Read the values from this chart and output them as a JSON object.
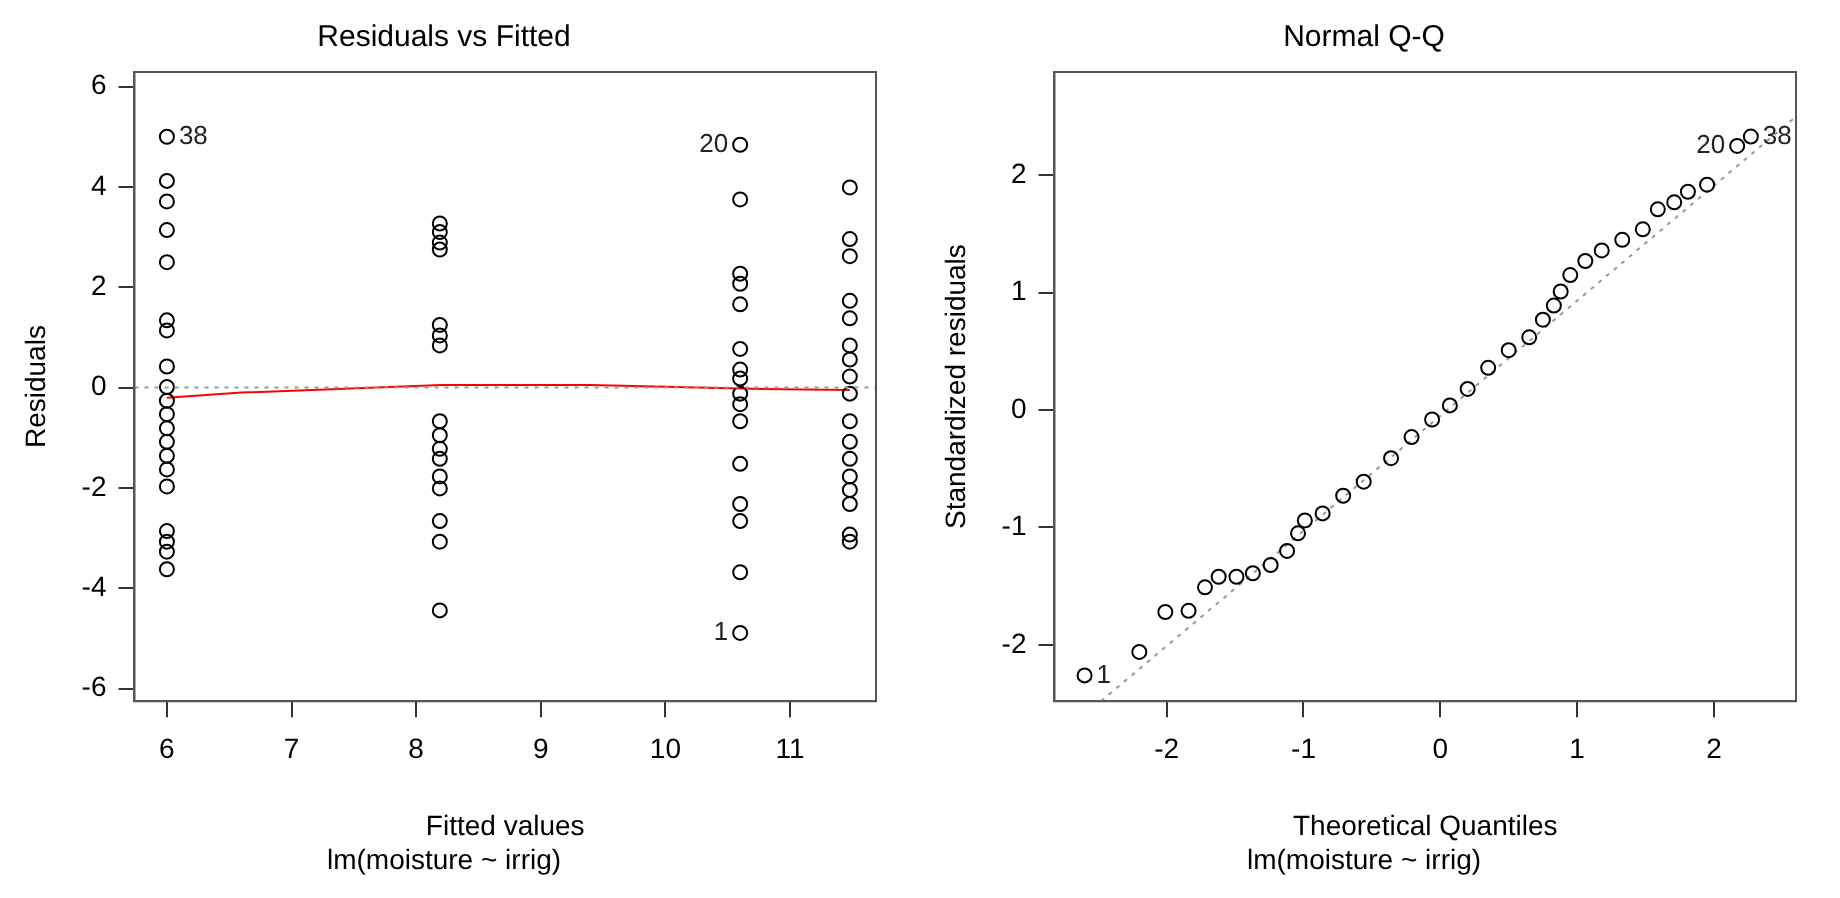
{
  "chart_data": [
    {
      "type": "scatter",
      "title": "Residuals vs Fitted",
      "xlabel": "Fitted values",
      "subtitle": "lm(moisture ~ irrig)",
      "ylabel": "Residuals",
      "xlim": [
        5.74,
        11.69
      ],
      "xticks": [
        6,
        7,
        8,
        9,
        10,
        11
      ],
      "ylim": [
        -6.25,
        6.29
      ],
      "yticks": [
        -6,
        -4,
        -2,
        0,
        2,
        4,
        6
      ],
      "grid": false,
      "legend": false,
      "marker": "circle",
      "series": [
        {
          "type": "scatter",
          "color": "#000000",
          "x": [
            6,
            6,
            6,
            6,
            6,
            6,
            6,
            6,
            6,
            6,
            6,
            6,
            6,
            6,
            6,
            6,
            6,
            6,
            6,
            6,
            8.19,
            8.19,
            8.19,
            8.19,
            8.19,
            8.19,
            8.19,
            8.19,
            8.19,
            8.19,
            8.19,
            8.19,
            8.19,
            8.19,
            8.19,
            8.19,
            10.6,
            10.6,
            10.6,
            10.6,
            10.6,
            10.6,
            10.6,
            10.6,
            10.6,
            10.6,
            10.6,
            10.6,
            10.6,
            10.6,
            10.6,
            10.6,
            11.48,
            11.48,
            11.48,
            11.48,
            11.48,
            11.48,
            11.48,
            11.48,
            11.48,
            11.48,
            11.48,
            11.48,
            11.48,
            11.48,
            11.48,
            11.48,
            11.48
          ],
          "values": [
            5.0,
            4.12,
            3.71,
            3.14,
            2.5,
            1.34,
            1.14,
            0.42,
            0.01,
            -0.26,
            -0.53,
            -0.81,
            -1.08,
            -1.36,
            -1.63,
            -1.97,
            -2.86,
            -3.07,
            -3.27,
            -3.62,
            3.27,
            3.1,
            2.89,
            2.75,
            1.25,
            1.04,
            0.84,
            -0.67,
            -0.95,
            -1.22,
            -1.42,
            -1.77,
            -2.01,
            -2.66,
            -3.07,
            -4.44,
            4.84,
            3.75,
            2.27,
            2.07,
            1.66,
            0.77,
            0.36,
            0.18,
            -0.12,
            -0.33,
            -0.67,
            -1.52,
            -2.32,
            -2.66,
            -3.68,
            -4.89,
            3.99,
            2.96,
            2.62,
            1.73,
            1.38,
            0.84,
            0.56,
            0.22,
            -0.12,
            -0.67,
            -1.08,
            -1.42,
            -1.77,
            -2.04,
            -2.32,
            -2.93,
            -3.07
          ]
        },
        {
          "type": "line",
          "color": "#ff0000",
          "x": [
            6,
            6.6,
            8.2,
            9.4,
            10.6,
            11.48
          ],
          "values": [
            -0.2,
            -0.1,
            0.05,
            0.05,
            -0.02,
            -0.05
          ],
          "marker": "none",
          "line_style": "solid"
        }
      ],
      "ref_lines": [
        {
          "axis": "y",
          "value": 0,
          "color": "#999999",
          "line_style": "dotted"
        }
      ],
      "annotations": [
        {
          "text": "38",
          "x": 6,
          "y": 5.0
        },
        {
          "text": "20",
          "x": 10.6,
          "y": 4.84
        },
        {
          "text": "1",
          "x": 10.6,
          "y": -4.89
        }
      ]
    },
    {
      "type": "scatter",
      "title": "Normal Q-Q",
      "xlabel": "Theoretical Quantiles",
      "subtitle": "lm(moisture ~ irrig)",
      "ylabel": "Standardized residuals",
      "xlim": [
        -2.82,
        2.6
      ],
      "xticks": [
        -2,
        -1,
        0,
        1,
        2
      ],
      "ylim": [
        -2.48,
        2.88
      ],
      "yticks": [
        -2,
        -1,
        0,
        1,
        2
      ],
      "grid": false,
      "legend": false,
      "marker": "circle",
      "series": [
        {
          "type": "scatter",
          "color": "#000000",
          "x": [
            -2.6,
            -2.2,
            -2.01,
            -1.84,
            -1.72,
            -1.62,
            -1.49,
            -1.37,
            -1.24,
            -1.12,
            -1.04,
            -0.99,
            -0.86,
            -0.71,
            -0.56,
            -0.36,
            -0.21,
            -0.06,
            0.07,
            0.2,
            0.35,
            0.5,
            0.65,
            0.75,
            0.83,
            0.88,
            0.95,
            1.06,
            1.18,
            1.33,
            1.48,
            1.59,
            1.71,
            1.81,
            1.95,
            2.17,
            2.27
          ],
          "values": [
            -2.26,
            -2.06,
            -1.72,
            -1.71,
            -1.51,
            -1.42,
            -1.42,
            -1.39,
            -1.32,
            -1.2,
            -1.05,
            -0.94,
            -0.88,
            -0.73,
            -0.61,
            -0.41,
            -0.23,
            -0.08,
            0.04,
            0.18,
            0.36,
            0.51,
            0.62,
            0.77,
            0.89,
            1.01,
            1.15,
            1.27,
            1.36,
            1.45,
            1.54,
            1.71,
            1.77,
            1.86,
            1.92,
            2.25,
            2.33
          ]
        },
        {
          "type": "line",
          "color": "#999999",
          "x": [
            -2.48,
            2.6
          ],
          "values": [
            -2.48,
            2.5
          ],
          "marker": "none",
          "line_style": "dotted"
        }
      ],
      "annotations": [
        {
          "text": "1",
          "x": -2.6,
          "y": -2.26
        },
        {
          "text": "20",
          "x": 2.17,
          "y": 2.25
        },
        {
          "text": "38",
          "x": 2.27,
          "y": 2.33
        }
      ]
    }
  ]
}
